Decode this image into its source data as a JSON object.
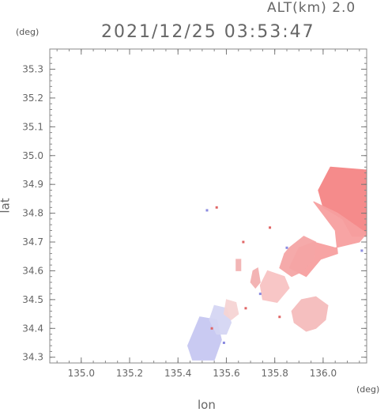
{
  "header": {
    "altitude_label": "ALT(km) 2.0",
    "timestamp": "2021/12/25 03:53:47"
  },
  "axes": {
    "y_unit": "(deg)",
    "x_unit": "(deg)",
    "y_title": "lat",
    "x_title": "lon"
  },
  "chart_data": {
    "type": "heatmap",
    "xlabel": "lon",
    "ylabel": "lat",
    "xlim": [
      134.87,
      136.18
    ],
    "ylim": [
      34.28,
      35.37
    ],
    "x_ticks": [
      "135.0",
      "135.2",
      "135.4",
      "135.6",
      "135.8",
      "136.0"
    ],
    "y_ticks": [
      "34.3",
      "34.4",
      "34.5",
      "34.6",
      "34.7",
      "34.8",
      "34.9",
      "35.0",
      "35.1",
      "35.2",
      "35.3"
    ],
    "regions": [
      {
        "color": "#f58585",
        "polygon": [
          [
            136.03,
            34.96
          ],
          [
            136.18,
            34.95
          ],
          [
            136.18,
            34.72
          ],
          [
            136.12,
            34.72
          ],
          [
            136.08,
            34.78
          ],
          [
            136.0,
            34.82
          ],
          [
            135.98,
            34.88
          ]
        ]
      },
      {
        "color": "#f7a0a0",
        "polygon": [
          [
            135.96,
            34.84
          ],
          [
            136.06,
            34.8
          ],
          [
            136.18,
            34.73
          ],
          [
            136.15,
            34.7
          ],
          [
            136.05,
            34.68
          ],
          [
            135.96,
            34.7
          ],
          [
            135.9,
            34.68
          ],
          [
            135.86,
            34.61
          ],
          [
            135.93,
            34.58
          ],
          [
            135.99,
            34.64
          ],
          [
            136.06,
            34.66
          ],
          [
            136.05,
            34.74
          ]
        ]
      },
      {
        "color": "#f5a6a6",
        "polygon": [
          [
            135.86,
            34.68
          ],
          [
            135.92,
            34.72
          ],
          [
            135.97,
            34.7
          ],
          [
            135.96,
            34.64
          ],
          [
            135.92,
            34.6
          ],
          [
            135.87,
            34.58
          ],
          [
            135.82,
            34.61
          ],
          [
            135.84,
            34.66
          ]
        ]
      },
      {
        "color": "#f8c4c4",
        "polygon": [
          [
            135.77,
            34.6
          ],
          [
            135.84,
            34.58
          ],
          [
            135.86,
            34.54
          ],
          [
            135.81,
            34.49
          ],
          [
            135.75,
            34.5
          ],
          [
            135.74,
            34.55
          ]
        ]
      },
      {
        "color": "#f5bcbc",
        "polygon": [
          [
            135.91,
            34.5
          ],
          [
            135.97,
            34.51
          ],
          [
            136.02,
            34.48
          ],
          [
            136.01,
            34.43
          ],
          [
            135.97,
            34.4
          ],
          [
            135.93,
            34.39
          ],
          [
            135.88,
            34.42
          ],
          [
            135.87,
            34.46
          ]
        ]
      },
      {
        "color": "#c7c8f2",
        "polygon": [
          [
            135.49,
            34.44
          ],
          [
            135.56,
            34.43
          ],
          [
            135.58,
            34.36
          ],
          [
            135.55,
            34.29
          ],
          [
            135.46,
            34.29
          ],
          [
            135.44,
            34.34
          ]
        ]
      },
      {
        "color": "#d5d6f4",
        "polygon": [
          [
            135.55,
            34.48
          ],
          [
            135.6,
            34.47
          ],
          [
            135.62,
            34.42
          ],
          [
            135.6,
            34.38
          ],
          [
            135.56,
            34.38
          ],
          [
            135.53,
            34.43
          ]
        ]
      },
      {
        "color": "#f6d4d4",
        "polygon": [
          [
            135.6,
            34.5
          ],
          [
            135.64,
            34.49
          ],
          [
            135.65,
            34.45
          ],
          [
            135.62,
            34.43
          ],
          [
            135.59,
            34.45
          ]
        ]
      },
      {
        "color": "#f3b1b1",
        "polygon": [
          [
            135.71,
            34.6
          ],
          [
            135.73,
            34.61
          ],
          [
            135.74,
            34.56
          ],
          [
            135.72,
            34.54
          ],
          [
            135.7,
            34.56
          ]
        ]
      },
      {
        "color": "#f2b3b3",
        "polygon": [
          [
            135.64,
            34.64
          ],
          [
            135.66,
            34.64
          ],
          [
            135.66,
            34.6
          ],
          [
            135.64,
            34.6
          ]
        ]
      }
    ],
    "specks": [
      {
        "lon": 135.52,
        "lat": 34.81,
        "color": "#8a8ae0"
      },
      {
        "lon": 135.56,
        "lat": 34.82,
        "color": "#e06666"
      },
      {
        "lon": 135.78,
        "lat": 34.75,
        "color": "#e06666"
      },
      {
        "lon": 135.67,
        "lat": 34.7,
        "color": "#e06666"
      },
      {
        "lon": 135.85,
        "lat": 34.68,
        "color": "#8a8ae0"
      },
      {
        "lon": 136.16,
        "lat": 34.67,
        "color": "#8a8ae0"
      },
      {
        "lon": 135.68,
        "lat": 34.47,
        "color": "#e06666"
      },
      {
        "lon": 135.74,
        "lat": 34.52,
        "color": "#8a8ae0"
      },
      {
        "lon": 135.82,
        "lat": 34.44,
        "color": "#e06666"
      },
      {
        "lon": 135.54,
        "lat": 34.4,
        "color": "#e06666"
      },
      {
        "lon": 135.59,
        "lat": 34.35,
        "color": "#8a8ae0"
      }
    ]
  }
}
